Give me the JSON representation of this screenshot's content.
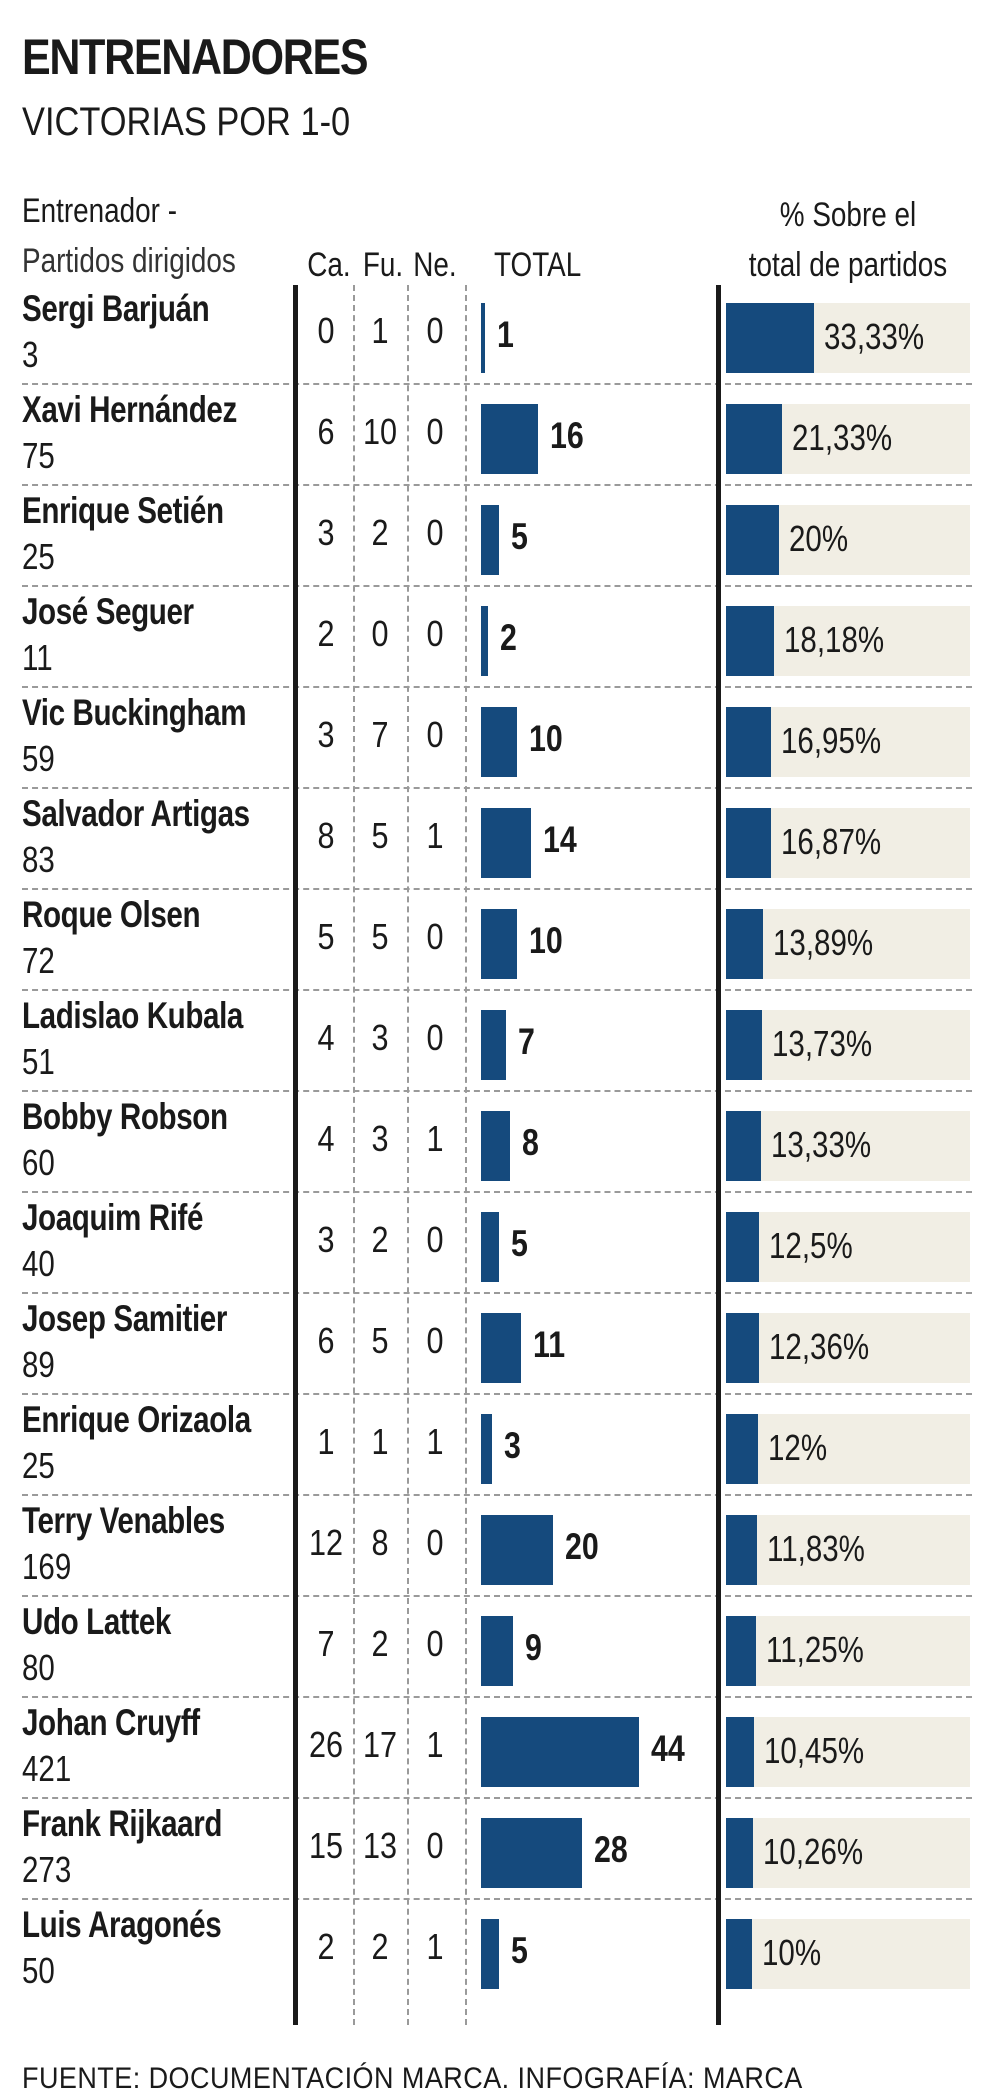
{
  "title": "ENTRENADORES",
  "subtitle": "VICTORIAS POR 1-0",
  "headers": {
    "coach_line1": "Entrenador -",
    "coach_line2": "Partidos dirigidos",
    "ca": "Ca.",
    "fu": "Fu.",
    "ne": "Ne.",
    "total": "TOTAL",
    "pct_line1": "% Sobre el",
    "pct_line2": "total de partidos"
  },
  "footer": "FUENTE: DOCUMENTACIÓN MARCA. INFOGRAFÍA: MARCA",
  "chart_data": {
    "type": "table",
    "columns": [
      "Entrenador",
      "Partidos dirigidos",
      "Ca.",
      "Fu.",
      "Ne.",
      "TOTAL",
      "% Sobre el total de partidos"
    ],
    "bar_color": "#154a7d",
    "pct_background": "#f1eee4",
    "total_scale_max": 44,
    "pct_scale_max": 33.33,
    "rows": [
      {
        "name": "Sergi Barjuán",
        "games": "3",
        "ca": "0",
        "fu": "1",
        "ne": "0",
        "total": 1,
        "total_label": "1",
        "pct": 33.33,
        "pct_label": "33,33%"
      },
      {
        "name": "Xavi Hernández",
        "games": "75",
        "ca": "6",
        "fu": "10",
        "ne": "0",
        "total": 16,
        "total_label": "16",
        "pct": 21.33,
        "pct_label": "21,33%"
      },
      {
        "name": "Enrique Setién",
        "games": "25",
        "ca": "3",
        "fu": "2",
        "ne": "0",
        "total": 5,
        "total_label": "5",
        "pct": 20,
        "pct_label": "20%"
      },
      {
        "name": "José Seguer",
        "games": "11",
        "ca": "2",
        "fu": "0",
        "ne": "0",
        "total": 2,
        "total_label": "2",
        "pct": 18.18,
        "pct_label": "18,18%"
      },
      {
        "name": "Vic Buckingham",
        "games": "59",
        "ca": "3",
        "fu": "7",
        "ne": "0",
        "total": 10,
        "total_label": "10",
        "pct": 16.95,
        "pct_label": "16,95%"
      },
      {
        "name": "Salvador Artigas",
        "games": "83",
        "ca": "8",
        "fu": "5",
        "ne": "1",
        "total": 14,
        "total_label": "14",
        "pct": 16.87,
        "pct_label": "16,87%"
      },
      {
        "name": "Roque Olsen",
        "games": "72",
        "ca": "5",
        "fu": "5",
        "ne": "0",
        "total": 10,
        "total_label": "10",
        "pct": 13.89,
        "pct_label": "13,89%"
      },
      {
        "name": "Ladislao Kubala",
        "games": "51",
        "ca": "4",
        "fu": "3",
        "ne": "0",
        "total": 7,
        "total_label": "7",
        "pct": 13.73,
        "pct_label": "13,73%"
      },
      {
        "name": "Bobby Robson",
        "games": "60",
        "ca": "4",
        "fu": "3",
        "ne": "1",
        "total": 8,
        "total_label": "8",
        "pct": 13.33,
        "pct_label": "13,33%"
      },
      {
        "name": "Joaquim Rifé",
        "games": "40",
        "ca": "3",
        "fu": "2",
        "ne": "0",
        "total": 5,
        "total_label": "5",
        "pct": 12.5,
        "pct_label": "12,5%"
      },
      {
        "name": "Josep Samitier",
        "games": "89",
        "ca": "6",
        "fu": "5",
        "ne": "0",
        "total": 11,
        "total_label": "11",
        "pct": 12.36,
        "pct_label": "12,36%"
      },
      {
        "name": "Enrique Orizaola",
        "games": "25",
        "ca": "1",
        "fu": "1",
        "ne": "1",
        "total": 3,
        "total_label": "3",
        "pct": 12,
        "pct_label": "12%"
      },
      {
        "name": "Terry Venables",
        "games": "169",
        "ca": "12",
        "fu": "8",
        "ne": "0",
        "total": 20,
        "total_label": "20",
        "pct": 11.83,
        "pct_label": "11,83%"
      },
      {
        "name": "Udo Lattek",
        "games": "80",
        "ca": "7",
        "fu": "2",
        "ne": "0",
        "total": 9,
        "total_label": "9",
        "pct": 11.25,
        "pct_label": "11,25%"
      },
      {
        "name": "Johan Cruyff",
        "games": "421",
        "ca": "26",
        "fu": "17",
        "ne": "1",
        "total": 44,
        "total_label": "44",
        "pct": 10.45,
        "pct_label": "10,45%"
      },
      {
        "name": "Frank Rijkaard",
        "games": "273",
        "ca": "15",
        "fu": "13",
        "ne": "0",
        "total": 28,
        "total_label": "28",
        "pct": 10.26,
        "pct_label": "10,26%"
      },
      {
        "name": "Luis Aragonés",
        "games": "50",
        "ca": "2",
        "fu": "2",
        "ne": "1",
        "total": 5,
        "total_label": "5",
        "pct": 10,
        "pct_label": "10%"
      }
    ]
  }
}
